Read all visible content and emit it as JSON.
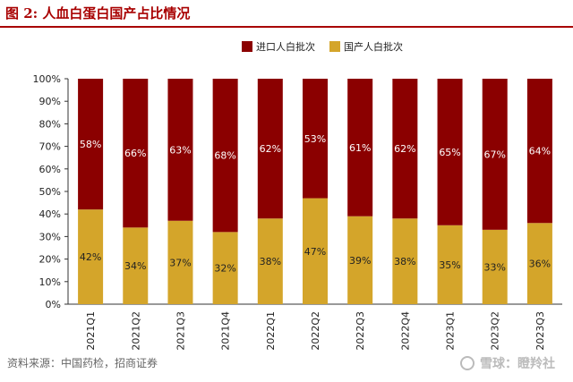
{
  "figure_title": "图 2:  人血白蛋白国产占比情况",
  "source": "资料来源：中国药检，招商证券",
  "watermark": "雪球：瞪羚社",
  "colors": {
    "imported": "#8b0000",
    "domestic": "#d4a52a",
    "title": "#a80000"
  },
  "chart_data": {
    "type": "bar",
    "stacked": true,
    "percent": true,
    "categories": [
      "2021Q1",
      "2021Q2",
      "2021Q3",
      "2021Q4",
      "2022Q1",
      "2022Q2",
      "2022Q3",
      "2022Q4",
      "2023Q1",
      "2023Q2",
      "2023Q3"
    ],
    "series": [
      {
        "name": "国产人白批次",
        "values": [
          42,
          34,
          37,
          32,
          38,
          47,
          39,
          38,
          35,
          33,
          36
        ]
      },
      {
        "name": "进口人白批次",
        "values": [
          58,
          66,
          63,
          68,
          62,
          53,
          61,
          62,
          65,
          67,
          64
        ]
      }
    ],
    "ylim": [
      0,
      100
    ],
    "yticks": [
      "0%",
      "10%",
      "20%",
      "30%",
      "40%",
      "50%",
      "60%",
      "70%",
      "80%",
      "90%",
      "100%"
    ],
    "legend_order": [
      "进口人白批次",
      "国产人白批次"
    ],
    "legend_position": "top-center",
    "grid": false
  }
}
